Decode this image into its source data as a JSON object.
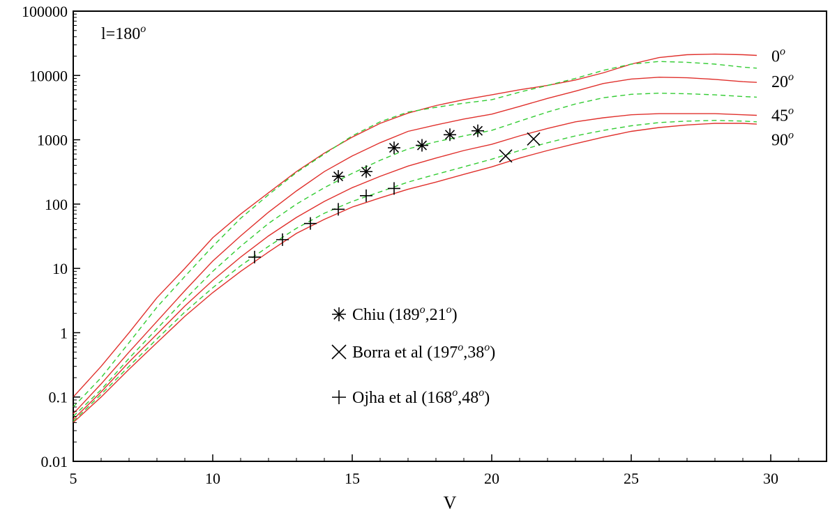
{
  "chart_data": {
    "type": "line",
    "xlabel": "V",
    "ylabel": "",
    "xlim": [
      5,
      32
    ],
    "ylim": [
      0.01,
      100000
    ],
    "yscale": "log",
    "grid": false,
    "legend_position": "center",
    "annotation": {
      "prefix": "l=180",
      "sup": "o"
    },
    "x_ticks": [
      {
        "value": 5,
        "label": "5"
      },
      {
        "value": 10,
        "label": "10"
      },
      {
        "value": 15,
        "label": "15"
      },
      {
        "value": 20,
        "label": "20"
      },
      {
        "value": 25,
        "label": "25"
      },
      {
        "value": 30,
        "label": "30"
      }
    ],
    "y_ticks": [
      {
        "value": 0.01,
        "label": "0.01"
      },
      {
        "value": 0.1,
        "label": "0.1"
      },
      {
        "value": 1,
        "label": "1"
      },
      {
        "value": 10,
        "label": "10"
      },
      {
        "value": 100,
        "label": "100"
      },
      {
        "value": 1000,
        "label": "1000"
      },
      {
        "value": 10000,
        "label": "10000"
      },
      {
        "value": 100000,
        "label": "100000"
      }
    ],
    "curve_labels": [
      {
        "text": "0",
        "sup": "o",
        "y": 20000
      },
      {
        "text": "20",
        "sup": "o",
        "y": 8000
      },
      {
        "text": "45",
        "sup": "o",
        "y": 2400
      },
      {
        "text": "90",
        "sup": "o",
        "y": 1000
      }
    ],
    "solid_color": "#e0302c",
    "dashed_color": "#33cc33",
    "series": [
      {
        "style": "solid",
        "points": [
          [
            5,
            0.1
          ],
          [
            6,
            0.3
          ],
          [
            7,
            1
          ],
          [
            8,
            3.5
          ],
          [
            9,
            10
          ],
          [
            10,
            30
          ],
          [
            11,
            70
          ],
          [
            12,
            150
          ],
          [
            13,
            320
          ],
          [
            14,
            620
          ],
          [
            15,
            1100
          ],
          [
            16,
            1800
          ],
          [
            17,
            2600
          ],
          [
            18,
            3400
          ],
          [
            19,
            4200
          ],
          [
            20,
            5000
          ],
          [
            21,
            6000
          ],
          [
            22,
            7000
          ],
          [
            23,
            8500
          ],
          [
            24,
            11000
          ],
          [
            25,
            15000
          ],
          [
            26,
            19000
          ],
          [
            27,
            21000
          ],
          [
            28,
            21500
          ],
          [
            29,
            21000
          ],
          [
            29.5,
            20500
          ]
        ]
      },
      {
        "style": "dashed",
        "points": [
          [
            5,
            0.07
          ],
          [
            6,
            0.2
          ],
          [
            7,
            0.7
          ],
          [
            8,
            2.5
          ],
          [
            9,
            7.5
          ],
          [
            10,
            22
          ],
          [
            11,
            60
          ],
          [
            12,
            140
          ],
          [
            13,
            310
          ],
          [
            14,
            600
          ],
          [
            15,
            1150
          ],
          [
            16,
            1900
          ],
          [
            17,
            2700
          ],
          [
            18,
            3200
          ],
          [
            19,
            3700
          ],
          [
            20,
            4200
          ],
          [
            21,
            5500
          ],
          [
            22,
            7000
          ],
          [
            23,
            9000
          ],
          [
            24,
            12000
          ],
          [
            25,
            15000
          ],
          [
            26,
            16500
          ],
          [
            27,
            16000
          ],
          [
            28,
            15000
          ],
          [
            29,
            13500
          ],
          [
            29.5,
            13000
          ]
        ]
      },
      {
        "style": "solid",
        "points": [
          [
            5,
            0.055
          ],
          [
            6,
            0.16
          ],
          [
            7,
            0.5
          ],
          [
            8,
            1.5
          ],
          [
            9,
            4.5
          ],
          [
            10,
            13
          ],
          [
            11,
            32
          ],
          [
            12,
            75
          ],
          [
            13,
            160
          ],
          [
            14,
            320
          ],
          [
            15,
            560
          ],
          [
            16,
            900
          ],
          [
            17,
            1350
          ],
          [
            18,
            1700
          ],
          [
            19,
            2100
          ],
          [
            20,
            2500
          ],
          [
            21,
            3300
          ],
          [
            22,
            4400
          ],
          [
            23,
            5700
          ],
          [
            24,
            7500
          ],
          [
            25,
            8800
          ],
          [
            26,
            9400
          ],
          [
            27,
            9200
          ],
          [
            28,
            8700
          ],
          [
            29,
            8000
          ],
          [
            29.5,
            7800
          ]
        ]
      },
      {
        "style": "dashed",
        "points": [
          [
            5,
            0.05
          ],
          [
            6,
            0.13
          ],
          [
            7,
            0.4
          ],
          [
            8,
            1.15
          ],
          [
            9,
            3.3
          ],
          [
            10,
            9
          ],
          [
            11,
            22
          ],
          [
            12,
            50
          ],
          [
            13,
            100
          ],
          [
            14,
            180
          ],
          [
            15,
            300
          ],
          [
            16,
            480
          ],
          [
            17,
            720
          ],
          [
            18,
            930
          ],
          [
            19,
            1150
          ],
          [
            20,
            1400
          ],
          [
            21,
            1950
          ],
          [
            22,
            2700
          ],
          [
            23,
            3600
          ],
          [
            24,
            4500
          ],
          [
            25,
            5100
          ],
          [
            26,
            5300
          ],
          [
            27,
            5200
          ],
          [
            28,
            5000
          ],
          [
            29,
            4700
          ],
          [
            29.5,
            4600
          ]
        ]
      },
      {
        "style": "solid",
        "points": [
          [
            5,
            0.045
          ],
          [
            6,
            0.12
          ],
          [
            7,
            0.35
          ],
          [
            8,
            0.95
          ],
          [
            9,
            2.6
          ],
          [
            10,
            6.5
          ],
          [
            11,
            15
          ],
          [
            12,
            32
          ],
          [
            13,
            62
          ],
          [
            14,
            110
          ],
          [
            15,
            180
          ],
          [
            16,
            270
          ],
          [
            17,
            390
          ],
          [
            18,
            520
          ],
          [
            19,
            680
          ],
          [
            20,
            850
          ],
          [
            21,
            1150
          ],
          [
            22,
            1500
          ],
          [
            23,
            1900
          ],
          [
            24,
            2200
          ],
          [
            25,
            2450
          ],
          [
            26,
            2550
          ],
          [
            27,
            2550
          ],
          [
            28,
            2550
          ],
          [
            29,
            2450
          ],
          [
            29.5,
            2400
          ]
        ]
      },
      {
        "style": "dashed",
        "points": [
          [
            5,
            0.042
          ],
          [
            6,
            0.11
          ],
          [
            7,
            0.3
          ],
          [
            8,
            0.8
          ],
          [
            9,
            2.1
          ],
          [
            10,
            5
          ],
          [
            11,
            11
          ],
          [
            12,
            22
          ],
          [
            13,
            42
          ],
          [
            14,
            72
          ],
          [
            15,
            110
          ],
          [
            16,
            155
          ],
          [
            17,
            220
          ],
          [
            18,
            290
          ],
          [
            19,
            380
          ],
          [
            20,
            500
          ],
          [
            21,
            680
          ],
          [
            22,
            900
          ],
          [
            23,
            1150
          ],
          [
            24,
            1400
          ],
          [
            25,
            1650
          ],
          [
            26,
            1850
          ],
          [
            27,
            1950
          ],
          [
            28,
            2000
          ],
          [
            29,
            1950
          ],
          [
            29.5,
            1900
          ]
        ]
      },
      {
        "style": "solid",
        "points": [
          [
            5,
            0.04
          ],
          [
            6,
            0.1
          ],
          [
            7,
            0.27
          ],
          [
            8,
            0.7
          ],
          [
            9,
            1.8
          ],
          [
            10,
            4.2
          ],
          [
            11,
            9
          ],
          [
            12,
            18
          ],
          [
            13,
            35
          ],
          [
            14,
            58
          ],
          [
            15,
            90
          ],
          [
            16,
            125
          ],
          [
            17,
            170
          ],
          [
            18,
            220
          ],
          [
            19,
            290
          ],
          [
            20,
            380
          ],
          [
            21,
            520
          ],
          [
            22,
            680
          ],
          [
            23,
            870
          ],
          [
            24,
            1100
          ],
          [
            25,
            1350
          ],
          [
            26,
            1550
          ],
          [
            27,
            1700
          ],
          [
            28,
            1800
          ],
          [
            29,
            1800
          ],
          [
            29.5,
            1750
          ]
        ]
      }
    ],
    "markers": [
      {
        "shape": "asterisk",
        "points": [
          [
            14.5,
            270
          ],
          [
            15.5,
            320
          ],
          [
            16.5,
            750
          ],
          [
            17.5,
            820
          ],
          [
            18.5,
            1200
          ],
          [
            19.5,
            1380
          ]
        ]
      },
      {
        "shape": "cross",
        "points": [
          [
            20.5,
            560
          ],
          [
            21.5,
            1030
          ]
        ]
      },
      {
        "shape": "plus",
        "points": [
          [
            11.5,
            15
          ],
          [
            12.5,
            28
          ],
          [
            13.5,
            50
          ],
          [
            14.5,
            83
          ],
          [
            15.5,
            135
          ],
          [
            16.5,
            175
          ]
        ]
      }
    ],
    "legend": [
      {
        "shape": "asterisk",
        "text": "Chiu (189",
        "sup1": "o",
        "mid": ",21",
        "sup2": "o",
        "end": ")"
      },
      {
        "shape": "cross",
        "text": "Borra et al (197",
        "sup1": "o",
        "mid": ",38",
        "sup2": "o",
        "end": ")"
      },
      {
        "shape": "plus",
        "text": "Ojha et al (168",
        "sup1": "o",
        "mid": ",48",
        "sup2": "o",
        "end": ")"
      }
    ]
  }
}
